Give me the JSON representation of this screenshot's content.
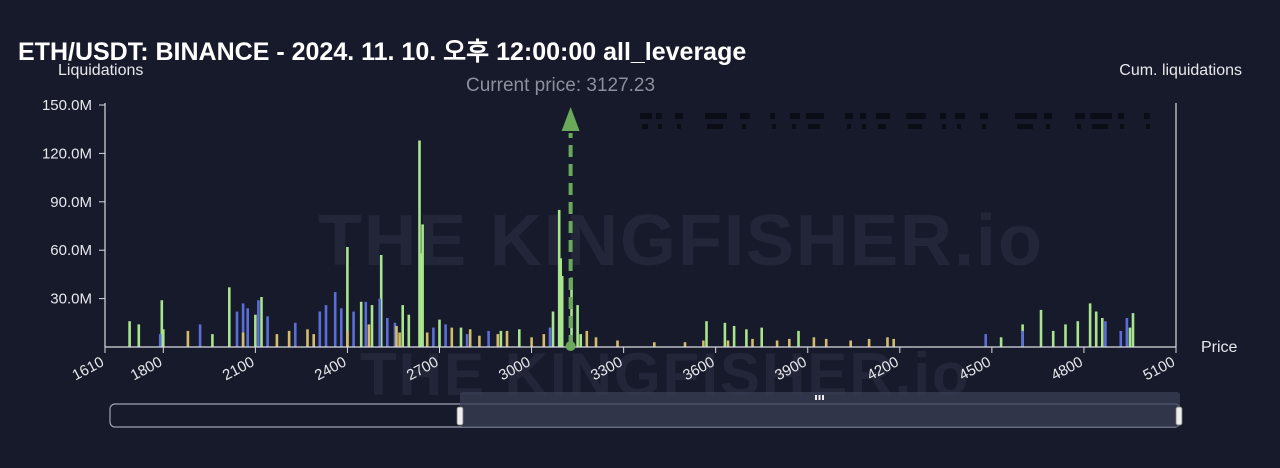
{
  "chart_data": {
    "type": "bar",
    "title": "ETH/USDT: BINANCE - 2024. 11. 10. 오후 12:00:00 all_leverage",
    "ylabel": "Liquidations",
    "y2label": "Cum. liquidations",
    "xlabel": "Price",
    "xlim": [
      1610,
      5100
    ],
    "ylim": [
      0,
      150000000
    ],
    "x_ticks": [
      1610,
      1800,
      2100,
      2400,
      2700,
      3000,
      3300,
      3600,
      3900,
      4200,
      4500,
      4800,
      5100
    ],
    "y_ticks": [
      {
        "value": 30000000,
        "label": "30.0M"
      },
      {
        "value": 60000000,
        "label": "60.0M"
      },
      {
        "value": 90000000,
        "label": "90.0M"
      },
      {
        "value": 120000000,
        "label": "120.0M"
      },
      {
        "value": 150000000,
        "label": "150.0M"
      }
    ],
    "current_price_label": "Current price: 3127.23",
    "current_price": 3127.23,
    "grid": false,
    "watermark": "THE KINGFISHER.io",
    "series": [
      {
        "color": "#a8e58c",
        "points": [
          [
            1690,
            16000000
          ],
          [
            1720,
            14000000
          ],
          [
            1795,
            29000000
          ],
          [
            1800,
            11000000
          ],
          [
            1960,
            8000000
          ],
          [
            2015,
            37000000
          ],
          [
            2100,
            20000000
          ],
          [
            2120,
            31000000
          ],
          [
            2400,
            62000000
          ],
          [
            2445,
            28000000
          ],
          [
            2480,
            26000000
          ],
          [
            2510,
            57000000
          ],
          [
            2580,
            26000000
          ],
          [
            2600,
            20000000
          ],
          [
            2635,
            128000000
          ],
          [
            2645,
            76000000
          ],
          [
            2640,
            58000000
          ],
          [
            2700,
            17000000
          ],
          [
            2770,
            12000000
          ],
          [
            2900,
            10000000
          ],
          [
            2960,
            11000000
          ],
          [
            3070,
            22000000
          ],
          [
            3090,
            85000000
          ],
          [
            3095,
            55000000
          ],
          [
            3100,
            44000000
          ],
          [
            3130,
            43000000
          ],
          [
            3150,
            26000000
          ],
          [
            3160,
            8000000
          ],
          [
            3570,
            16000000
          ],
          [
            3630,
            15000000
          ],
          [
            3660,
            13000000
          ],
          [
            3700,
            11000000
          ],
          [
            3750,
            12000000
          ],
          [
            3870,
            10000000
          ],
          [
            4530,
            6000000
          ],
          [
            4600,
            14000000
          ],
          [
            4660,
            23000000
          ],
          [
            4700,
            10000000
          ],
          [
            4740,
            14000000
          ],
          [
            4780,
            16000000
          ],
          [
            4820,
            27000000
          ],
          [
            4840,
            22000000
          ],
          [
            4860,
            18000000
          ],
          [
            4950,
            12000000
          ],
          [
            4960,
            21000000
          ]
        ]
      },
      {
        "color": "#5b6ed6",
        "points": [
          [
            1790,
            8000000
          ],
          [
            1920,
            14000000
          ],
          [
            2040,
            22000000
          ],
          [
            2060,
            27000000
          ],
          [
            2075,
            24000000
          ],
          [
            2110,
            29000000
          ],
          [
            2140,
            19000000
          ],
          [
            2230,
            15000000
          ],
          [
            2310,
            22000000
          ],
          [
            2330,
            26000000
          ],
          [
            2360,
            34000000
          ],
          [
            2380,
            24000000
          ],
          [
            2420,
            22000000
          ],
          [
            2460,
            28000000
          ],
          [
            2505,
            30000000
          ],
          [
            2530,
            18000000
          ],
          [
            2555,
            15000000
          ],
          [
            2680,
            12000000
          ],
          [
            2720,
            14000000
          ],
          [
            2790,
            8000000
          ],
          [
            2860,
            10000000
          ],
          [
            3060,
            12000000
          ],
          [
            4480,
            8000000
          ],
          [
            4600,
            10000000
          ],
          [
            4870,
            16000000
          ],
          [
            4920,
            10000000
          ],
          [
            4940,
            18000000
          ]
        ]
      },
      {
        "color": "#d4bc6a",
        "points": [
          [
            1880,
            10000000
          ],
          [
            2060,
            9000000
          ],
          [
            2170,
            8000000
          ],
          [
            2210,
            10000000
          ],
          [
            2270,
            11000000
          ],
          [
            2290,
            8000000
          ],
          [
            2400,
            10000000
          ],
          [
            2470,
            14000000
          ],
          [
            2560,
            13000000
          ],
          [
            2570,
            9000000
          ],
          [
            2660,
            9000000
          ],
          [
            2740,
            12000000
          ],
          [
            2800,
            11000000
          ],
          [
            2830,
            7000000
          ],
          [
            2890,
            8000000
          ],
          [
            2920,
            10000000
          ],
          [
            3000,
            6000000
          ],
          [
            3040,
            8000000
          ],
          [
            3180,
            10000000
          ],
          [
            3210,
            6000000
          ],
          [
            3280,
            4000000
          ],
          [
            3400,
            3000000
          ],
          [
            3500,
            3000000
          ],
          [
            3560,
            4000000
          ],
          [
            3640,
            4000000
          ],
          [
            3720,
            5000000
          ],
          [
            3800,
            4000000
          ],
          [
            3840,
            5000000
          ],
          [
            3920,
            6000000
          ],
          [
            3960,
            5000000
          ],
          [
            4040,
            4000000
          ],
          [
            4100,
            5000000
          ],
          [
            4160,
            6000000
          ],
          [
            4180,
            5000000
          ]
        ]
      }
    ]
  }
}
